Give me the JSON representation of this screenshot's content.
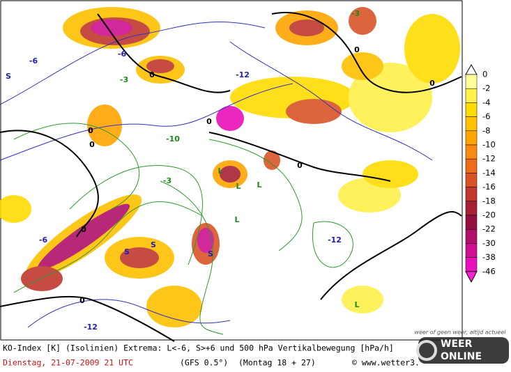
{
  "caption": {
    "line1": "KO-Index [K] (Isolinien) Extrema: L<-6, S>+6 und 500 hPa Vertikalbewegung [hPa/h]",
    "date": "Dienstag, 21-07-2009   21 UTC",
    "model": "(GFS 0.5°)",
    "run": "(Montag 18 + 27)",
    "source": "© www.wetter3."
  },
  "colorbar": {
    "labels": [
      0,
      -2,
      -4,
      -6,
      -8,
      -10,
      -12,
      -14,
      -16,
      -18,
      -20,
      -22,
      -30,
      -38,
      -46
    ],
    "colors": [
      "#ffff99",
      "#fff04a",
      "#ffdc00",
      "#ffc000",
      "#ffa400",
      "#f88a10",
      "#ec6e1c",
      "#d85426",
      "#c0382e",
      "#a82036",
      "#941040",
      "#b0106a",
      "#cc1090",
      "#e810b8",
      "#ff20d8"
    ]
  },
  "map_labels": [
    "0",
    "0",
    "0",
    "0",
    "0",
    "0",
    "0",
    "0",
    "0",
    "-6",
    "-6",
    "-6",
    "-12",
    "-12",
    "-3",
    "-3",
    "S",
    "S",
    "S",
    "S",
    "L",
    "L",
    "L",
    "L",
    "L",
    "-10",
    "-12",
    "-3"
  ],
  "logo": {
    "tagline": "weer of geen weer, altijd actueel",
    "line1": "WEER",
    "line2": "ONLINE"
  }
}
